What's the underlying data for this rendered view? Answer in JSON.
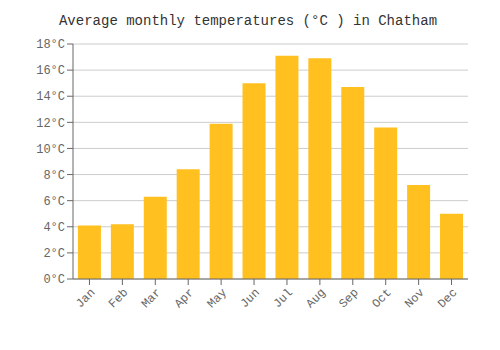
{
  "chart_data": {
    "type": "bar",
    "title": "Average monthly temperatures (°C ) in Chatham",
    "categories": [
      "Jan",
      "Feb",
      "Mar",
      "Apr",
      "May",
      "Jun",
      "Jul",
      "Aug",
      "Sep",
      "Oct",
      "Nov",
      "Dec"
    ],
    "values": [
      4.1,
      4.2,
      6.3,
      8.4,
      11.9,
      15.0,
      17.1,
      16.9,
      14.7,
      11.6,
      7.2,
      5.0
    ],
    "color": "#FFC020",
    "ylim": [
      0,
      18
    ],
    "yticks": [
      {
        "value": 0,
        "label": "0°C"
      },
      {
        "value": 2,
        "label": "2°C"
      },
      {
        "value": 4,
        "label": "4°C"
      },
      {
        "value": 6,
        "label": "6°C"
      },
      {
        "value": 8,
        "label": "8°C"
      },
      {
        "value": 10,
        "label": "10°C"
      },
      {
        "value": 12,
        "label": "12°C"
      },
      {
        "value": 14,
        "label": "14°C"
      },
      {
        "value": 16,
        "label": "16°C"
      },
      {
        "value": 18,
        "label": "18°C"
      }
    ],
    "grid": true
  }
}
